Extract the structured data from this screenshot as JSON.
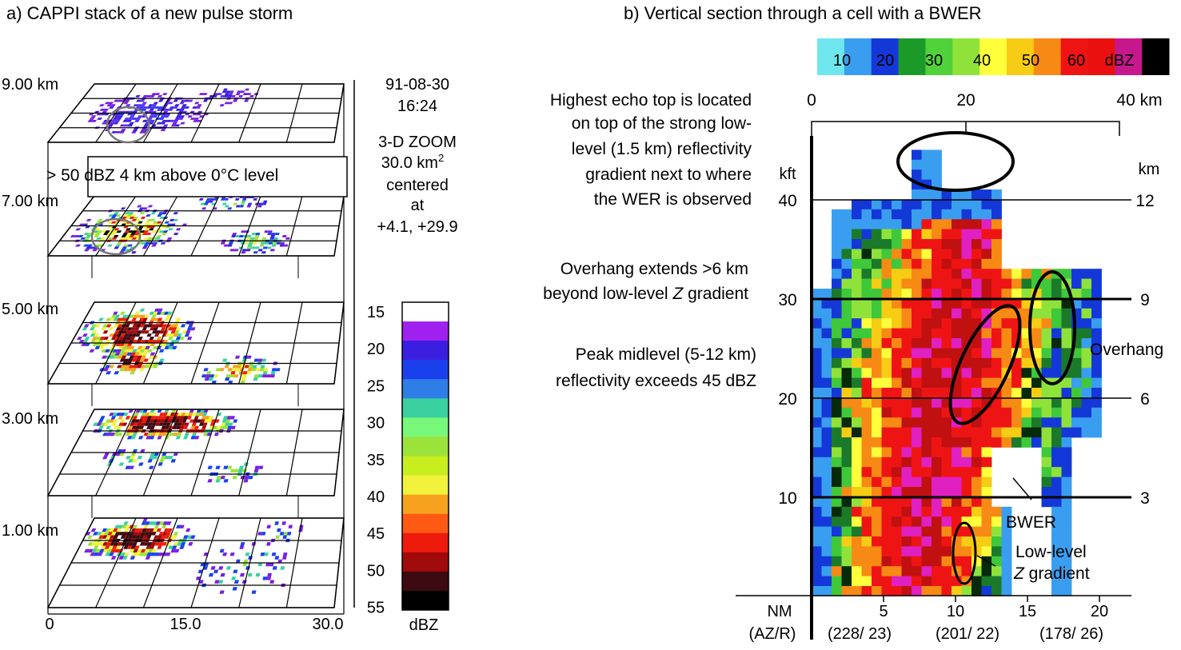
{
  "panel_a": {
    "title": "a) CAPPI stack of a new pulse storm",
    "levels": [
      "9.00 km",
      "7.00 km",
      "5.00 km",
      "3.00 km",
      "1.00 km"
    ],
    "annotation": "> 50 dBZ 4 km above 0°C level",
    "info": {
      "date": "91-08-30",
      "time": "16:24",
      "zoom": "3-D ZOOM",
      "area": "30.0 km",
      "area_sup": "2",
      "centered": "centered",
      "at": "at",
      "coords": "+4.1, +29.9"
    },
    "x_ticks": [
      "0",
      "15.0",
      "30.0"
    ],
    "colorbar": {
      "labels": [
        "15",
        "20",
        "25",
        "30",
        "35",
        "40",
        "45",
        "50",
        "55"
      ],
      "unit": "dBZ",
      "colors": [
        "#ffffff",
        "#a020f0",
        "#3b1fe0",
        "#1a40ee",
        "#2f7de6",
        "#3ad0a0",
        "#78f878",
        "#9be33b",
        "#c8ee20",
        "#f2f23c",
        "#f6a21e",
        "#ff5a14",
        "#ee1a0c",
        "#a00a0a",
        "#3c0a10",
        "#000000"
      ]
    }
  },
  "panel_b": {
    "title": "b) Vertical section through a cell with a BWER",
    "colorbar": {
      "labels": [
        "10",
        "20",
        "30",
        "40",
        "50",
        "60",
        "dBZ"
      ],
      "colors": [
        "#6fe6ee",
        "#3a9ef0",
        "#1438d8",
        "#1b9a2a",
        "#4fd23a",
        "#8fe23a",
        "#ffff3c",
        "#f6cc14",
        "#f78a14",
        "#ef1414",
        "#ea1010",
        "#c6188c",
        "#000000"
      ]
    },
    "top_axis": [
      "0",
      "20",
      "40 km"
    ],
    "kft_label": "kft",
    "km_label": "km",
    "kft_ticks": [
      "40",
      "30",
      "20",
      "10"
    ],
    "km_ticks": [
      "12",
      "9",
      "6",
      "3"
    ],
    "bottom_label_nm": "NM",
    "bottom_label_azr": "(AZ/R)",
    "bottom_ticks": [
      "5",
      "10",
      "15",
      "20"
    ],
    "bottom_azr": [
      "(228/ 23)",
      "(201/ 22)",
      "(178/ 26)"
    ],
    "notes": {
      "echo_top": [
        "Highest echo top is located",
        "on top of the strong low-",
        "level (1.5 km) reflectivity",
        "gradient next to where",
        "the WER is observed"
      ],
      "overhang_a": "Overhang extends >6 km",
      "overhang_b1": "beyond low-level ",
      "overhang_b_z": "Z",
      "overhang_b2": " gradient",
      "peak": [
        "Peak midlevel (5-12 km)",
        "reflectivity exceeds 45 dBZ"
      ]
    },
    "labels": {
      "overhang": "Overhang",
      "bwer": "BWER",
      "low_level_1": "Low-level",
      "low_level_2_z": "Z",
      "low_level_2": " gradient"
    }
  }
}
